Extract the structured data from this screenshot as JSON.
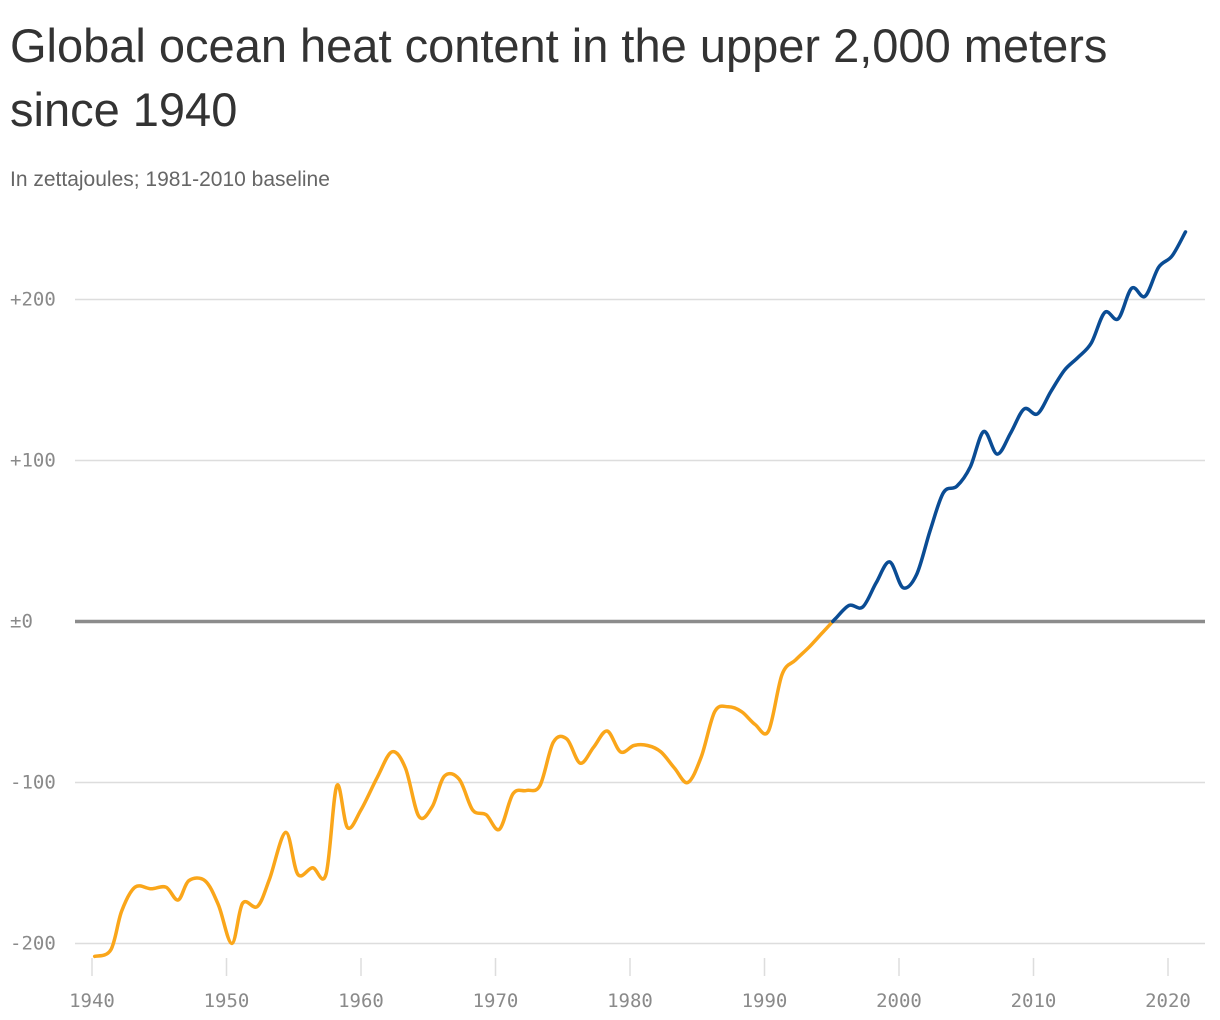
{
  "title": "Global ocean heat content in the upper 2,000 meters since 1940",
  "subtitle": "In zettajoules; 1981-2010 baseline",
  "colors": {
    "below_baseline": "#FAA61A",
    "above_baseline": "#0A4C94",
    "baseline": "#8c8c8c",
    "grid": "#dddddd"
  },
  "chart_data": {
    "type": "line",
    "title": "Global ocean heat content in the upper 2,000 meters since 1940",
    "subtitle": "In zettajoules; 1981-2010 baseline",
    "xlabel": "",
    "ylabel": "",
    "xlim": [
      1940,
      2021
    ],
    "ylim": [
      -210,
      240
    ],
    "x_ticks": [
      1940,
      1950,
      1960,
      1970,
      1980,
      1990,
      2000,
      2010,
      2020
    ],
    "x_tick_labels": [
      "1940",
      "1950",
      "1960",
      "1970",
      "1980",
      "1990",
      "2000",
      "2010",
      "2020"
    ],
    "y_ticks": [
      -200,
      -100,
      0,
      100,
      200
    ],
    "y_tick_labels": [
      "-200",
      "-100",
      "±0",
      "+100",
      "+200"
    ],
    "grid": true,
    "baseline": 0,
    "series": [
      {
        "x": [
          1940.2,
          1941.4,
          1942.2,
          1943.2,
          1944.4,
          1945.5,
          1946.4,
          1947.2,
          1948.4,
          1949.4,
          1950.4,
          1951.2,
          1952.3,
          1953.2,
          1954.4,
          1955.3,
          1956.4,
          1957.4,
          1958.2,
          1959.0,
          1960.0,
          1961.2,
          1962.3,
          1963.3,
          1964.3,
          1965.3,
          1966.2,
          1967.3,
          1968.3,
          1969.3,
          1970.3,
          1971.3,
          1972.3,
          1973.3,
          1974.3,
          1975.3,
          1976.3,
          1977.3,
          1978.3,
          1979.3,
          1980.3,
          1981.3,
          1982.3,
          1983.3,
          1984.3,
          1985.3,
          1986.3,
          1987.3,
          1988.3,
          1989.3,
          1990.3,
          1991.3,
          1992.3,
          1993.3,
          1994.3,
          1995.3,
          1996.3,
          1997.3,
          1998.3,
          1999.3,
          2000.3,
          2001.3,
          2002.3,
          2003.3,
          2004.3,
          2005.3,
          2006.3,
          2007.3,
          2008.3,
          2009.3,
          2010.3,
          2011.3,
          2012.3,
          2013.3,
          2014.3,
          2015.3,
          2016.3,
          2017.3,
          2018.3,
          2019.3,
          2020.3,
          2021.3
        ],
        "y": [
          -208,
          -204,
          -180,
          -165,
          -166,
          -165,
          -173,
          -161,
          -161,
          -176,
          -200,
          -175,
          -177,
          -160,
          -131,
          -157,
          -153,
          -157,
          -102,
          -128,
          -117,
          -97,
          -81,
          -91,
          -121,
          -115,
          -96,
          -98,
          -117,
          -120,
          -129,
          -107,
          -105,
          -102,
          -75,
          -73,
          -88,
          -78,
          -68,
          -81,
          -77,
          -77,
          -81,
          -91,
          -100,
          -84,
          -56,
          -53,
          -56,
          -64,
          -68,
          -33,
          -24,
          -16,
          -7,
          2,
          10,
          9,
          24,
          37,
          21,
          29,
          56,
          80,
          84,
          96,
          118,
          104,
          117,
          132,
          129,
          143,
          156,
          164,
          173,
          192,
          188,
          207,
          202,
          220,
          227,
          242
        ]
      }
    ]
  }
}
